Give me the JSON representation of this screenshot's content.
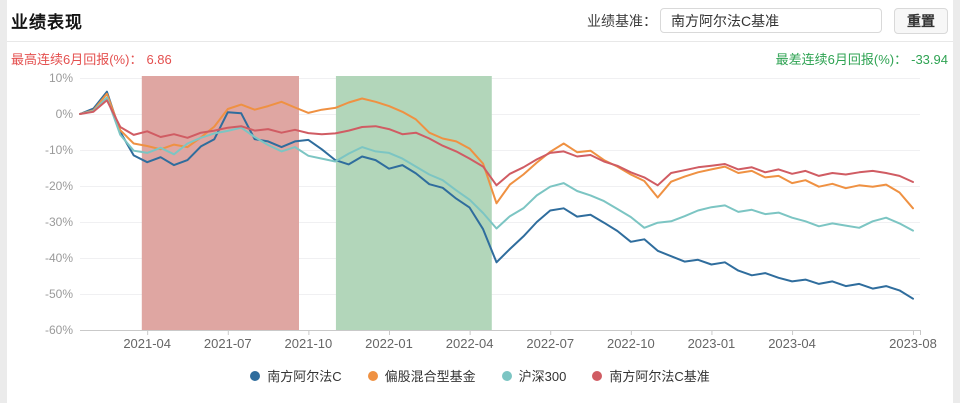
{
  "header": {
    "title": "业绩表现",
    "benchmark_label": "业绩基准：",
    "benchmark_value": "南方阿尔法C基准",
    "reset_label": "重置"
  },
  "stats": {
    "best_label": "最高连续6月回报(%)：",
    "best_value": "6.86",
    "best_color": "#e4504f",
    "worst_label": "最差连续6月回报(%)：",
    "worst_value": "-33.94",
    "worst_color": "#2fa353"
  },
  "chart_data": {
    "type": "line",
    "title": "",
    "xlabel": "date",
    "ylabel": "cumulative return (%)",
    "x_start": "2021-01",
    "x_end": "2023-08",
    "x_sampling": "semi-monthly points, index 0 = 2021-01",
    "ylim": [
      -60,
      10
    ],
    "grid": true,
    "legend_position": "bottom",
    "x_ticks": [
      {
        "index": 5,
        "label": "2021-04"
      },
      {
        "index": 11,
        "label": "2021-07"
      },
      {
        "index": 17,
        "label": "2021-10"
      },
      {
        "index": 23,
        "label": "2022-01"
      },
      {
        "index": 29,
        "label": "2022-04"
      },
      {
        "index": 35,
        "label": "2022-07"
      },
      {
        "index": 41,
        "label": "2022-10"
      },
      {
        "index": 47,
        "label": "2023-01"
      },
      {
        "index": 53,
        "label": "2023-04"
      },
      {
        "index": 62,
        "label": "2023-08"
      }
    ],
    "y_ticks": [
      {
        "value": 10,
        "label": "10%"
      },
      {
        "value": 0,
        "label": "0%"
      },
      {
        "value": -10,
        "label": "-10%"
      },
      {
        "value": -20,
        "label": "-20%"
      },
      {
        "value": -30,
        "label": "-30%"
      },
      {
        "value": -40,
        "label": "-40%"
      },
      {
        "value": -50,
        "label": "-50%"
      },
      {
        "value": -60,
        "label": "-60%"
      }
    ],
    "bands": [
      {
        "key": "highlight-red",
        "color": "#dfa6a2",
        "from_index": 4.6,
        "to_index": 16.3,
        "note": "worst stretch shading ~2021-03 to 2021-09"
      },
      {
        "key": "highlight-green",
        "color": "#b2d6ba",
        "from_index": 19.05,
        "to_index": 30.65,
        "note": "worst 6-month stretch shading ~2021-11 to 2022-04"
      }
    ],
    "series": [
      {
        "key": "nanfang-alpha-c",
        "name": "南方阿尔法C",
        "color": "#2f6d9d",
        "values": [
          0,
          1.5,
          6.2,
          -5,
          -11.5,
          -13.4,
          -12,
          -14.2,
          -12.8,
          -9,
          -7,
          0.5,
          0.2,
          -7,
          -7.6,
          -9.2,
          -7.6,
          -7.2,
          -9.8,
          -12.8,
          -14,
          -11.8,
          -12.8,
          -15.2,
          -14.2,
          -16.5,
          -19.5,
          -20.5,
          -23.5,
          -26,
          -32,
          -41.2,
          -37.5,
          -34,
          -30,
          -26.8,
          -26.2,
          -28.5,
          -28,
          -30.2,
          -32.5,
          -35.5,
          -34.8,
          -38,
          -39.5,
          -41,
          -40.5,
          -41.8,
          -41.2,
          -43.5,
          -44.8,
          -44.2,
          -45.5,
          -46.5,
          -46,
          -47.2,
          -46.5,
          -47.8,
          -47.2,
          -48.5,
          -47.8,
          -49,
          -51.3
        ]
      },
      {
        "key": "hybrid-equity-fund-index",
        "name": "偏股混合型基金",
        "color": "#ef9142",
        "values": [
          0,
          1,
          5.6,
          -4.5,
          -8.2,
          -8.9,
          -9.8,
          -8.5,
          -9.2,
          -6.5,
          -3.5,
          1.4,
          2.6,
          1.2,
          2.2,
          3.4,
          1.8,
          0.3,
          1.2,
          1.7,
          3.2,
          4.3,
          3.4,
          2.2,
          0.6,
          -1.5,
          -5.2,
          -6.8,
          -7.6,
          -9.6,
          -13.8,
          -24.8,
          -19.6,
          -16.8,
          -13.5,
          -10.5,
          -8.2,
          -10.6,
          -10.2,
          -12.8,
          -14.6,
          -16.8,
          -18.6,
          -23.2,
          -18.8,
          -17.4,
          -16.2,
          -15.4,
          -14.6,
          -16.4,
          -15.8,
          -17.6,
          -17.2,
          -19.2,
          -18.4,
          -20.2,
          -19.4,
          -20.6,
          -19.8,
          -20.2,
          -19.6,
          -21.8,
          -26.2
        ]
      },
      {
        "key": "csi300",
        "name": "沪深300",
        "color": "#7cc5c3",
        "values": [
          0,
          0.8,
          4.6,
          -5.8,
          -10.2,
          -10.8,
          -9.4,
          -11.2,
          -8.2,
          -6.6,
          -5.4,
          -4.7,
          -3.8,
          -6.4,
          -8.6,
          -10.4,
          -9.2,
          -11.6,
          -12.4,
          -13.2,
          -11,
          -9.2,
          -10.4,
          -10.8,
          -12.4,
          -14.6,
          -16.8,
          -18.4,
          -21.2,
          -23.8,
          -27.5,
          -31.8,
          -28.4,
          -26.2,
          -22.6,
          -20.2,
          -19.2,
          -21.4,
          -22.6,
          -24.2,
          -26.4,
          -28.6,
          -31.6,
          -30.2,
          -29.8,
          -28.4,
          -26.8,
          -25.9,
          -25.4,
          -27.2,
          -26.6,
          -27.8,
          -27.4,
          -28.8,
          -29.8,
          -31.2,
          -30.4,
          -31,
          -31.6,
          -29.8,
          -28.8,
          -30.4,
          -32.4
        ]
      },
      {
        "key": "benchmark-nanfang-alpha-c",
        "name": "南方阿尔法C基准",
        "color": "#d05c63",
        "values": [
          0,
          0.6,
          3.8,
          -3.6,
          -5.8,
          -4.8,
          -6.4,
          -5.6,
          -6.6,
          -5.2,
          -4.6,
          -3.8,
          -3.4,
          -4.6,
          -4.2,
          -5.2,
          -4.4,
          -5.3,
          -5.6,
          -5.4,
          -4.6,
          -3.6,
          -3.4,
          -4.2,
          -5.6,
          -5.2,
          -6.8,
          -8.8,
          -10.4,
          -12.4,
          -14.6,
          -19.8,
          -16.6,
          -14.8,
          -12.6,
          -10.8,
          -10.4,
          -11.8,
          -11.4,
          -13.2,
          -14.4,
          -16.2,
          -17.6,
          -19.8,
          -16.4,
          -15.6,
          -14.8,
          -14.4,
          -13.9,
          -15.4,
          -14.8,
          -16.2,
          -15.4,
          -16.6,
          -15.8,
          -17.2,
          -16.4,
          -16.8,
          -16.2,
          -15.8,
          -16.4,
          -17.2,
          -18.9
        ]
      }
    ]
  }
}
